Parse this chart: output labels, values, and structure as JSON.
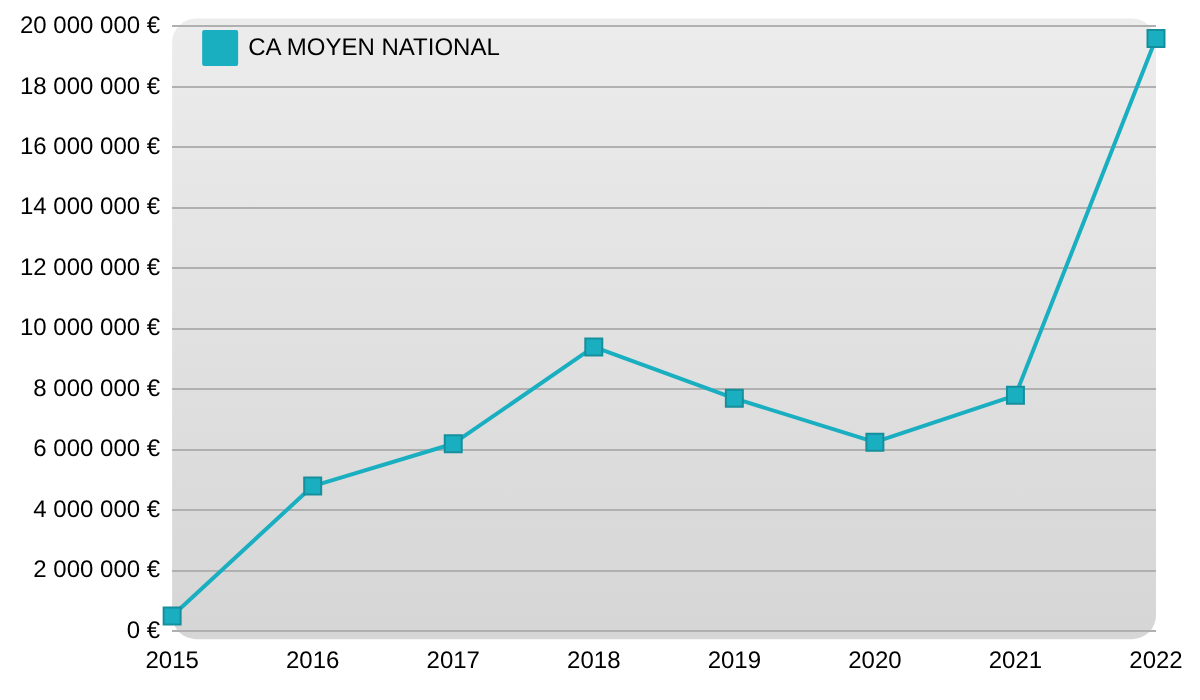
{
  "chart_data": {
    "type": "line",
    "categories": [
      "2015",
      "2016",
      "2017",
      "2018",
      "2019",
      "2020",
      "2021",
      "2022"
    ],
    "series": [
      {
        "name": "CA MOYEN NATIONAL",
        "color": "#1aafc0",
        "values": [
          500000,
          4800000,
          6200000,
          9400000,
          7700000,
          6250000,
          7800000,
          19600000
        ]
      }
    ],
    "ylim": [
      0,
      20000000
    ],
    "yticks": [
      {
        "value": 0,
        "label": "0 €"
      },
      {
        "value": 2000000,
        "label": "2 000 000 €"
      },
      {
        "value": 4000000,
        "label": "4 000 000 €"
      },
      {
        "value": 6000000,
        "label": "6 000 000 €"
      },
      {
        "value": 8000000,
        "label": "8 000 000 €"
      },
      {
        "value": 10000000,
        "label": "10 000 000 €"
      },
      {
        "value": 12000000,
        "label": "12 000 000 €"
      },
      {
        "value": 14000000,
        "label": "14 000 000 €"
      },
      {
        "value": 16000000,
        "label": "16 000 000 €"
      },
      {
        "value": 18000000,
        "label": "18 000 000 €"
      },
      {
        "value": 20000000,
        "label": "20 000 000 €"
      }
    ],
    "grid": "y",
    "legend": "top left",
    "marker": "square",
    "line_style": "solid"
  }
}
